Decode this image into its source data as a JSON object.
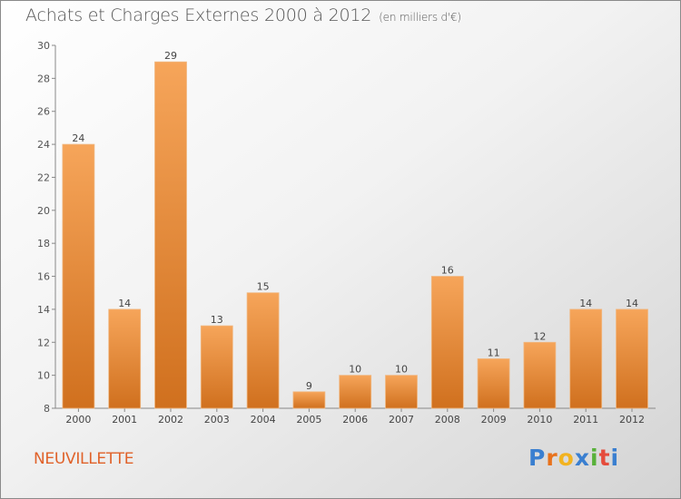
{
  "header": {
    "title": "Achats et Charges Externes 2000 à 2012",
    "unit": "(en milliers d'€)"
  },
  "commune": "NEUVILLETTE",
  "logo": {
    "text": "Proxiti",
    "letter_colors": [
      "#3a7fd0",
      "#e8721c",
      "#f2b320",
      "#3a7fd0",
      "#58b13a",
      "#e54c3c",
      "#3a7fd0"
    ]
  },
  "colors": {
    "bar_top": "#f6a55a",
    "bar_bottom": "#d0701e",
    "label": "#444444",
    "commune": "#e0622a"
  },
  "chart_data": {
    "type": "bar",
    "title": "Achats et Charges Externes 2000 à 2012",
    "subtitle": "(en milliers d'€)",
    "categories": [
      "2000",
      "2001",
      "2002",
      "2003",
      "2004",
      "2005",
      "2006",
      "2007",
      "2008",
      "2009",
      "2010",
      "2011",
      "2012"
    ],
    "values": [
      24,
      14,
      29,
      13,
      15,
      9,
      10,
      10,
      16,
      11,
      12,
      14,
      14
    ],
    "ylim": [
      8,
      30
    ],
    "yticks": [
      8,
      10,
      12,
      14,
      16,
      18,
      20,
      22,
      24,
      26,
      28,
      30
    ],
    "grid": false,
    "legend": "none"
  }
}
